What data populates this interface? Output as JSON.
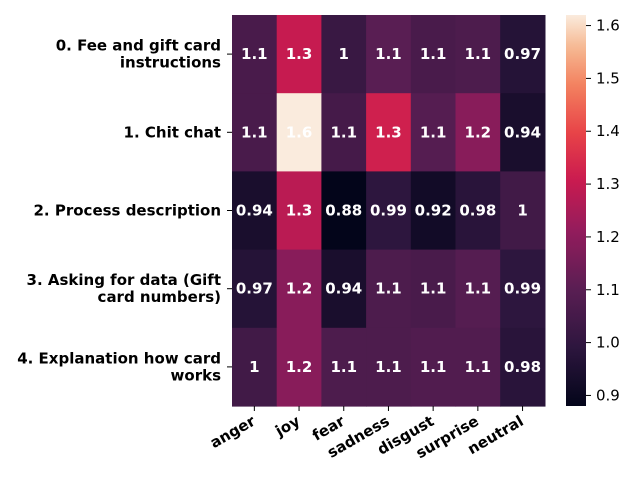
{
  "chart_data": {
    "type": "heatmap",
    "title": "",
    "xlabel": "",
    "ylabel": "",
    "x_categories": [
      "anger",
      "joy",
      "fear",
      "sadness",
      "disgust",
      "surprise",
      "neutral"
    ],
    "y_categories": [
      [
        "0. Fee and gift card",
        "instructions"
      ],
      [
        "1. Chit chat"
      ],
      [
        "2. Process description"
      ],
      [
        "3. Asking for data (Gift",
        "card numbers)"
      ],
      [
        "4. Explanation how card",
        "works"
      ]
    ],
    "values": [
      [
        1.06,
        1.3,
        1.02,
        1.1,
        1.06,
        1.07,
        0.97
      ],
      [
        1.06,
        1.62,
        1.05,
        1.32,
        1.09,
        1.19,
        0.94
      ],
      [
        0.94,
        1.28,
        0.88,
        0.99,
        0.92,
        0.98,
        1.04
      ],
      [
        0.97,
        1.19,
        0.94,
        1.07,
        1.06,
        1.09,
        0.99
      ],
      [
        1.04,
        1.19,
        1.07,
        1.07,
        1.08,
        1.08,
        0.98
      ]
    ],
    "annotations": [
      [
        "1.1",
        "1.3",
        "1",
        "1.1",
        "1.1",
        "1.1",
        "0.97"
      ],
      [
        "1.1",
        "1.6",
        "1.1",
        "1.3",
        "1.1",
        "1.2",
        "0.94"
      ],
      [
        "0.94",
        "1.3",
        "0.88",
        "0.99",
        "0.92",
        "0.98",
        "1"
      ],
      [
        "0.97",
        "1.2",
        "0.94",
        "1.1",
        "1.1",
        "1.1",
        "0.99"
      ],
      [
        "1",
        "1.2",
        "1.1",
        "1.1",
        "1.1",
        "1.1",
        "0.98"
      ]
    ],
    "colorbar": {
      "range": [
        0.88,
        1.62
      ],
      "ticks": [
        0.9,
        1.0,
        1.1,
        1.2,
        1.3,
        1.4,
        1.5,
        1.6
      ],
      "tick_labels": [
        "0.9",
        "1.0",
        "1.1",
        "1.2",
        "1.3",
        "1.4",
        "1.5",
        "1.6"
      ],
      "colormap": "rocket"
    },
    "grid": false,
    "legend": "none"
  }
}
